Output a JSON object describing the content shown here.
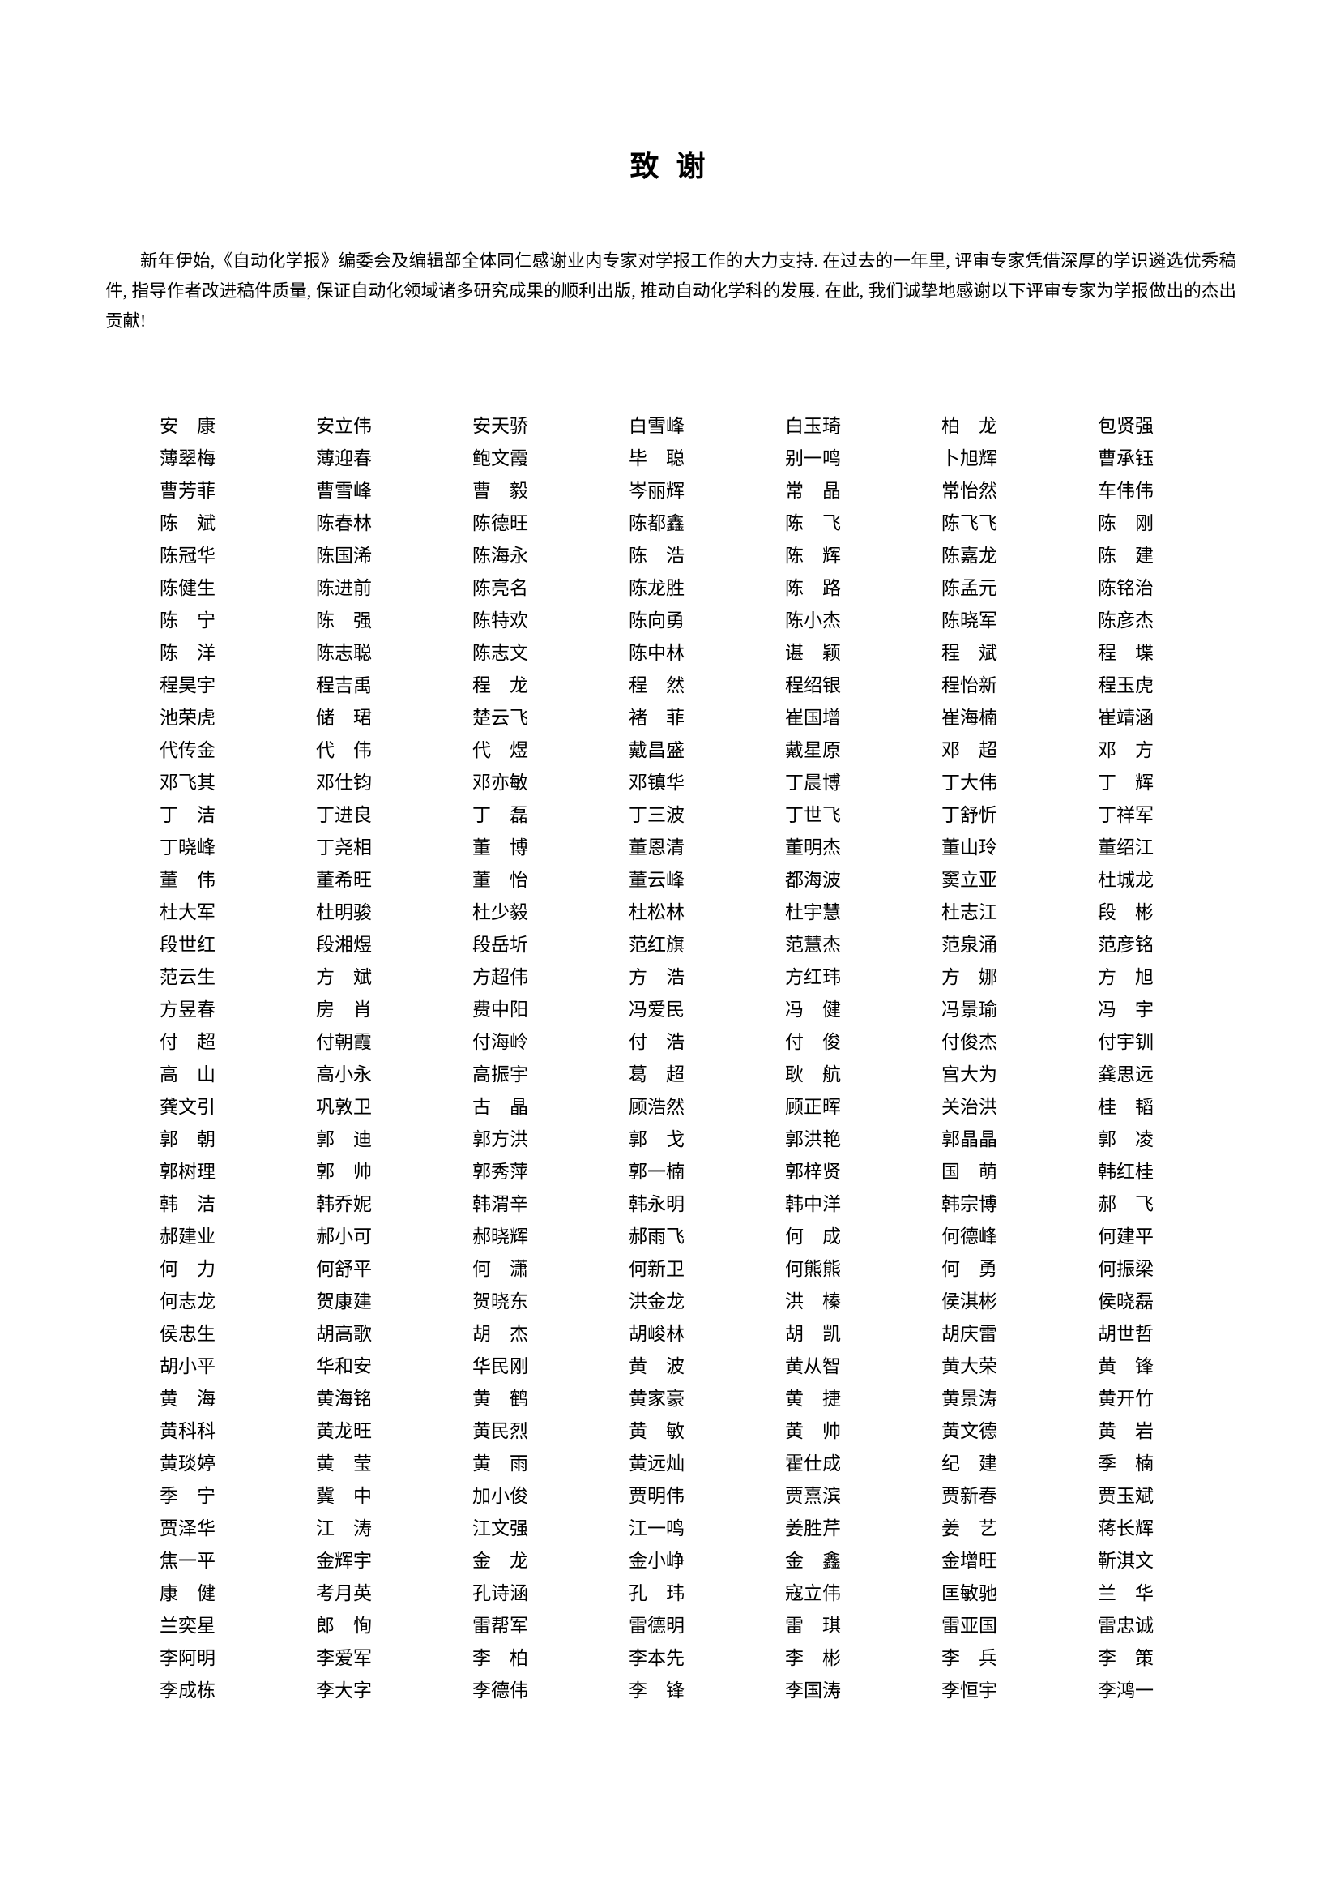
{
  "page": {
    "title": "致 谢",
    "intro": "新年伊始,《自动化学报》编委会及编辑部全体同仁感谢业内专家对学报工作的大力支持. 在过去的一年里, 评审专家凭借深厚的学识遴选优秀稿件, 指导作者改进稿件质量, 保证自动化领域诸多研究成果的顺利出版, 推动自动化学科的发展. 在此, 我们诚挚地感谢以下评审专家为学报做出的杰出贡献!"
  },
  "reviewers": {
    "columns": 7,
    "rows": [
      [
        "安康",
        "安立伟",
        "安天骄",
        "白雪峰",
        "白玉琦",
        "柏龙",
        "包贤强"
      ],
      [
        "薄翠梅",
        "薄迎春",
        "鲍文霞",
        "毕聪",
        "别一鸣",
        "卜旭辉",
        "曹承钰"
      ],
      [
        "曹芳菲",
        "曹雪峰",
        "曹毅",
        "岑丽辉",
        "常晶",
        "常怡然",
        "车伟伟"
      ],
      [
        "陈斌",
        "陈春林",
        "陈德旺",
        "陈都鑫",
        "陈飞",
        "陈飞飞",
        "陈刚"
      ],
      [
        "陈冠华",
        "陈国浠",
        "陈海永",
        "陈浩",
        "陈辉",
        "陈嘉龙",
        "陈建"
      ],
      [
        "陈健生",
        "陈进前",
        "陈亮名",
        "陈龙胜",
        "陈路",
        "陈孟元",
        "陈铭治"
      ],
      [
        "陈宁",
        "陈强",
        "陈特欢",
        "陈向勇",
        "陈小杰",
        "陈晓军",
        "陈彦杰"
      ],
      [
        "陈洋",
        "陈志聪",
        "陈志文",
        "陈中林",
        "谌颖",
        "程斌",
        "程堞"
      ],
      [
        "程昊宇",
        "程吉禹",
        "程龙",
        "程然",
        "程绍银",
        "程怡新",
        "程玉虎"
      ],
      [
        "池荣虎",
        "储珺",
        "楚云飞",
        "褚菲",
        "崔国增",
        "崔海楠",
        "崔靖涵"
      ],
      [
        "代传金",
        "代伟",
        "代煜",
        "戴昌盛",
        "戴星原",
        "邓超",
        "邓方"
      ],
      [
        "邓飞其",
        "邓仕钧",
        "邓亦敏",
        "邓镇华",
        "丁晨博",
        "丁大伟",
        "丁辉"
      ],
      [
        "丁洁",
        "丁进良",
        "丁磊",
        "丁三波",
        "丁世飞",
        "丁舒忻",
        "丁祥军"
      ],
      [
        "丁晓峰",
        "丁尧相",
        "董博",
        "董恩清",
        "董明杰",
        "董山玲",
        "董绍江"
      ],
      [
        "董伟",
        "董希旺",
        "董怡",
        "董云峰",
        "都海波",
        "窦立亚",
        "杜城龙"
      ],
      [
        "杜大军",
        "杜明骏",
        "杜少毅",
        "杜松林",
        "杜宇慧",
        "杜志江",
        "段彬"
      ],
      [
        "段世红",
        "段湘煜",
        "段岳圻",
        "范红旗",
        "范慧杰",
        "范泉涌",
        "范彦铭"
      ],
      [
        "范云生",
        "方斌",
        "方超伟",
        "方浩",
        "方红玮",
        "方娜",
        "方旭"
      ],
      [
        "方昱春",
        "房肖",
        "费中阳",
        "冯爱民",
        "冯健",
        "冯景瑜",
        "冯宇"
      ],
      [
        "付超",
        "付朝霞",
        "付海岭",
        "付浩",
        "付俊",
        "付俊杰",
        "付宇钏"
      ],
      [
        "高山",
        "高小永",
        "高振宇",
        "葛超",
        "耿航",
        "宫大为",
        "龚思远"
      ],
      [
        "龚文引",
        "巩敦卫",
        "古晶",
        "顾浩然",
        "顾正晖",
        "关治洪",
        "桂韬"
      ],
      [
        "郭朝",
        "郭迪",
        "郭方洪",
        "郭戈",
        "郭洪艳",
        "郭晶晶",
        "郭凌"
      ],
      [
        "郭树理",
        "郭帅",
        "郭秀萍",
        "郭一楠",
        "郭梓贤",
        "国萌",
        "韩红桂"
      ],
      [
        "韩洁",
        "韩乔妮",
        "韩渭辛",
        "韩永明",
        "韩中洋",
        "韩宗博",
        "郝飞"
      ],
      [
        "郝建业",
        "郝小可",
        "郝晓辉",
        "郝雨飞",
        "何成",
        "何德峰",
        "何建平"
      ],
      [
        "何力",
        "何舒平",
        "何潇",
        "何新卫",
        "何熊熊",
        "何勇",
        "何振梁"
      ],
      [
        "何志龙",
        "贺康建",
        "贺晓东",
        "洪金龙",
        "洪榛",
        "侯淇彬",
        "侯晓磊"
      ],
      [
        "侯忠生",
        "胡高歌",
        "胡杰",
        "胡峻林",
        "胡凯",
        "胡庆雷",
        "胡世哲"
      ],
      [
        "胡小平",
        "华和安",
        "华民刚",
        "黄波",
        "黄从智",
        "黄大荣",
        "黄锋"
      ],
      [
        "黄海",
        "黄海铭",
        "黄鹤",
        "黄家豪",
        "黄捷",
        "黄景涛",
        "黄开竹"
      ],
      [
        "黄科科",
        "黄龙旺",
        "黄民烈",
        "黄敏",
        "黄帅",
        "黄文德",
        "黄岩"
      ],
      [
        "黄琰婷",
        "黄莹",
        "黄雨",
        "黄远灿",
        "霍仕成",
        "纪建",
        "季楠"
      ],
      [
        "季宁",
        "冀中",
        "加小俊",
        "贾明伟",
        "贾熹滨",
        "贾新春",
        "贾玉斌"
      ],
      [
        "贾泽华",
        "江涛",
        "江文强",
        "江一鸣",
        "姜胜芹",
        "姜艺",
        "蒋长辉"
      ],
      [
        "焦一平",
        "金辉宇",
        "金龙",
        "金小峥",
        "金鑫",
        "金增旺",
        "靳淇文"
      ],
      [
        "康健",
        "考月英",
        "孔诗涵",
        "孔玮",
        "寇立伟",
        "匡敏驰",
        "兰华"
      ],
      [
        "兰奕星",
        "郎恂",
        "雷帮军",
        "雷德明",
        "雷琪",
        "雷亚国",
        "雷忠诚"
      ],
      [
        "李阿明",
        "李爱军",
        "李柏",
        "李本先",
        "李彬",
        "李兵",
        "李策"
      ],
      [
        "李成栋",
        "李大字",
        "李德伟",
        "李锋",
        "李国涛",
        "李恒宇",
        "李鸿一"
      ]
    ]
  }
}
